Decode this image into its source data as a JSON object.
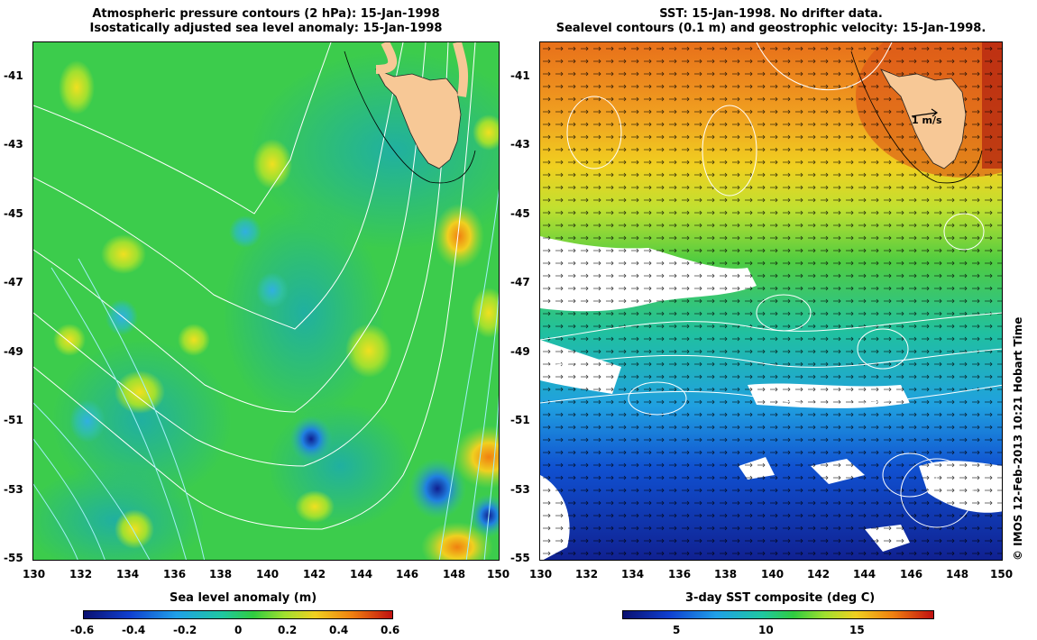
{
  "left_panel": {
    "title_line1": "Atmospheric pressure contours (2 hPa): 15-Jan-1998",
    "title_line2": "Isostatically adjusted sea level anomaly: 15-Jan-1998",
    "x_ticks": [
      "130",
      "132",
      "134",
      "136",
      "138",
      "140",
      "142",
      "144",
      "146",
      "148",
      "150"
    ],
    "y_ticks": [
      "-41",
      "-43",
      "-45",
      "-47",
      "-49",
      "-51",
      "-53",
      "-55"
    ],
    "colorbar": {
      "title": "Sea level anomaly (m)",
      "ticks": [
        "-0.6",
        "-0.4",
        "-0.2",
        "0",
        "0.2",
        "0.4",
        "0.6"
      ]
    }
  },
  "right_panel": {
    "title_line1": "SST: 15-Jan-1998. No drifter data.",
    "title_line2": "Sealevel contours (0.1 m) and geostrophic velocity: 15-Jan-1998.",
    "x_ticks": [
      "130",
      "132",
      "134",
      "136",
      "138",
      "140",
      "142",
      "144",
      "146",
      "148",
      "150"
    ],
    "y_ticks": [
      "-41",
      "-43",
      "-45",
      "-47",
      "-49",
      "-51",
      "-53",
      "-55"
    ],
    "velocity_scale_label": "1 m/s",
    "colorbar": {
      "title": "3-day SST composite (deg C)",
      "ticks": [
        "5",
        "10",
        "15"
      ]
    }
  },
  "credit": "© IMOS 12-Feb-2013 10:21 Hobart Time",
  "colors": {
    "land": "#f7c896",
    "sla_background": "#33cc55",
    "sst_warm": "#e8801a",
    "sst_cold": "#1030b0"
  }
}
